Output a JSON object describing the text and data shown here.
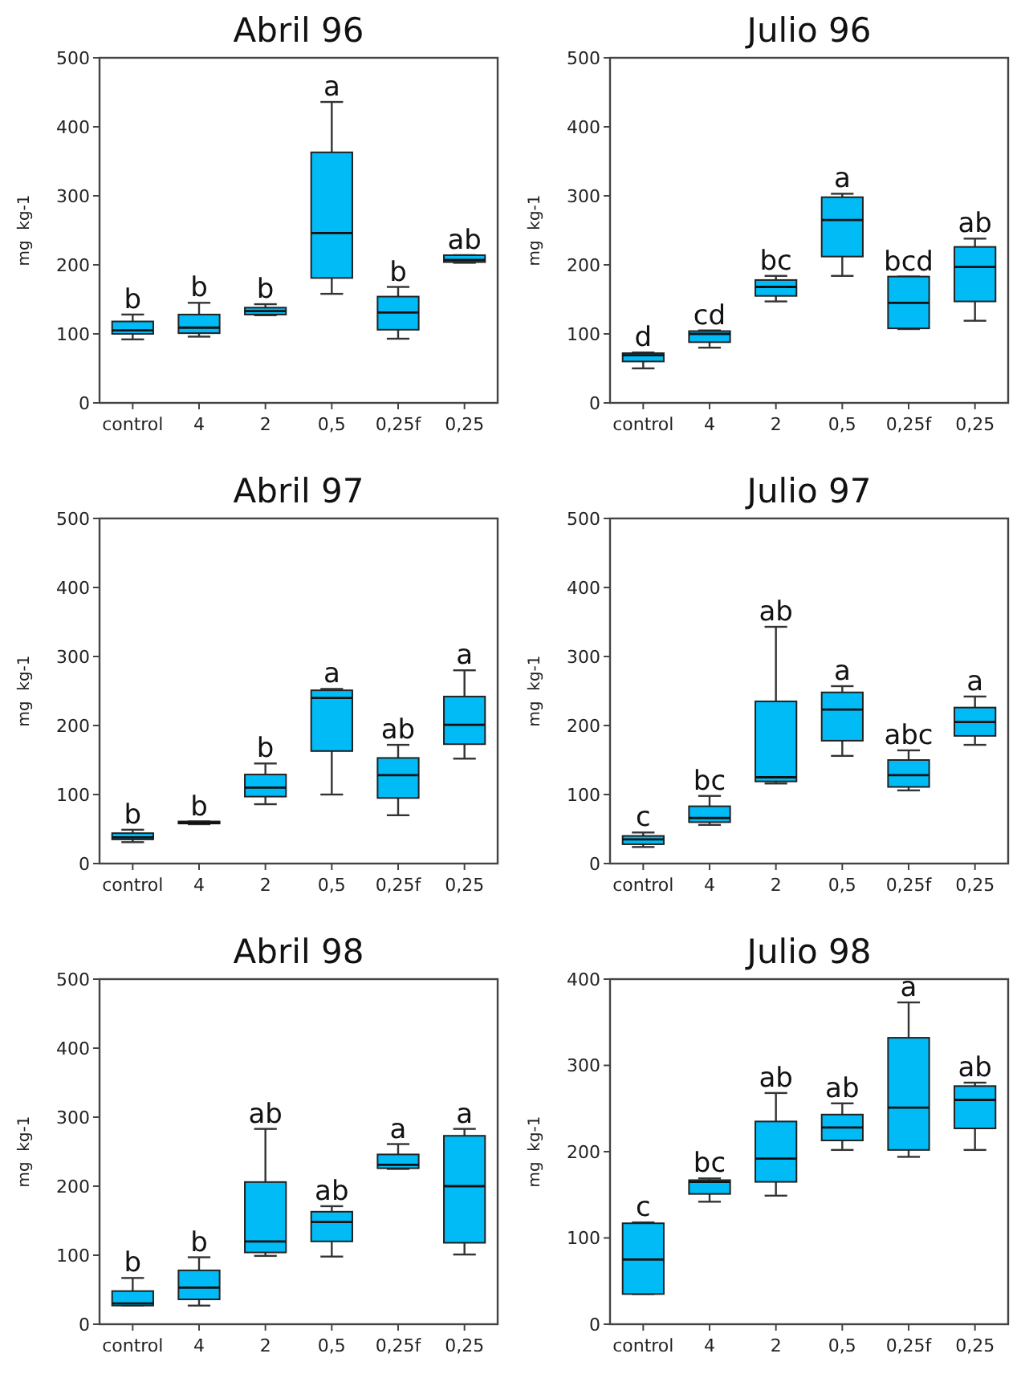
{
  "chart_data": [
    {
      "type": "box",
      "title": "Abril 96",
      "ylabel": "mg  kg-1",
      "categories": [
        "control",
        "4",
        "2",
        "0,5",
        "0,25f",
        "0,25"
      ],
      "ylim": [
        0,
        500
      ],
      "yticks": [
        0,
        100,
        200,
        300,
        400,
        500
      ],
      "grid": false,
      "series": [
        {
          "color": "#00bbf5",
          "boxes": [
            {
              "low": 92,
              "q1": 100,
              "median": 105,
              "q3": 118,
              "high": 128
            },
            {
              "low": 96,
              "q1": 101,
              "median": 109,
              "q3": 128,
              "high": 145
            },
            {
              "low": 127,
              "q1": 128,
              "median": 133,
              "q3": 138,
              "high": 143
            },
            {
              "low": 158,
              "q1": 181,
              "median": 246,
              "q3": 363,
              "high": 436
            },
            {
              "low": 93,
              "q1": 106,
              "median": 131,
              "q3": 154,
              "high": 168
            },
            {
              "low": 203,
              "q1": 204,
              "median": 207,
              "q3": 214,
              "high": 214
            }
          ]
        }
      ],
      "annotations": [
        {
          "text": "b",
          "x": "control",
          "y": 128
        },
        {
          "text": "b",
          "x": "4",
          "y": 145
        },
        {
          "text": "b",
          "x": "2",
          "y": 143
        },
        {
          "text": "a",
          "x": "0,5",
          "y": 436
        },
        {
          "text": "b",
          "x": "0,25f",
          "y": 168
        },
        {
          "text": "ab",
          "x": "0,25",
          "y": 214
        }
      ]
    },
    {
      "type": "box",
      "title": "Julio 96",
      "ylabel": "mg  kg-1",
      "categories": [
        "control",
        "4",
        "2",
        "0,5",
        "0,25f",
        "0,25"
      ],
      "ylim": [
        0,
        500
      ],
      "yticks": [
        0,
        100,
        200,
        300,
        400,
        500
      ],
      "grid": false,
      "series": [
        {
          "color": "#00bbf5",
          "boxes": [
            {
              "low": 50,
              "q1": 60,
              "median": 69,
              "q3": 72,
              "high": 73
            },
            {
              "low": 80,
              "q1": 88,
              "median": 100,
              "q3": 104,
              "high": 105
            },
            {
              "low": 147,
              "q1": 155,
              "median": 168,
              "q3": 178,
              "high": 184
            },
            {
              "low": 184,
              "q1": 212,
              "median": 265,
              "q3": 298,
              "high": 303
            },
            {
              "low": 107,
              "q1": 108,
              "median": 145,
              "q3": 183,
              "high": 183
            },
            {
              "low": 119,
              "q1": 147,
              "median": 197,
              "q3": 226,
              "high": 238
            }
          ]
        }
      ],
      "annotations": [
        {
          "text": "d",
          "x": "control",
          "y": 73
        },
        {
          "text": "cd",
          "x": "4",
          "y": 105
        },
        {
          "text": "bc",
          "x": "2",
          "y": 184
        },
        {
          "text": "a",
          "x": "0,5",
          "y": 303
        },
        {
          "text": "bcd",
          "x": "0,25f",
          "y": 183
        },
        {
          "text": "ab",
          "x": "0,25",
          "y": 238
        }
      ]
    },
    {
      "type": "box",
      "title": "Abril 97",
      "ylabel": "mg  kg-1",
      "categories": [
        "control",
        "4",
        "2",
        "0,5",
        "0,25f",
        "0,25"
      ],
      "ylim": [
        0,
        500
      ],
      "yticks": [
        0,
        100,
        200,
        300,
        400,
        500
      ],
      "grid": false,
      "series": [
        {
          "color": "#00bbf5",
          "boxes": [
            {
              "low": 31,
              "q1": 35,
              "median": 38,
              "q3": 44,
              "high": 49
            },
            {
              "low": 57,
              "q1": 58,
              "median": 59,
              "q3": 61,
              "high": 61
            },
            {
              "low": 86,
              "q1": 97,
              "median": 110,
              "q3": 129,
              "high": 145
            },
            {
              "low": 100,
              "q1": 163,
              "median": 240,
              "q3": 251,
              "high": 253
            },
            {
              "low": 70,
              "q1": 95,
              "median": 128,
              "q3": 153,
              "high": 172
            },
            {
              "low": 152,
              "q1": 173,
              "median": 201,
              "q3": 242,
              "high": 280
            }
          ]
        }
      ],
      "annotations": [
        {
          "text": "b",
          "x": "control",
          "y": 49
        },
        {
          "text": "b",
          "x": "4",
          "y": 61
        },
        {
          "text": "b",
          "x": "2",
          "y": 145
        },
        {
          "text": "a",
          "x": "0,5",
          "y": 253
        },
        {
          "text": "ab",
          "x": "0,25f",
          "y": 172
        },
        {
          "text": "a",
          "x": "0,25",
          "y": 280
        }
      ]
    },
    {
      "type": "box",
      "title": "Julio 97",
      "ylabel": "mg  kg-1",
      "categories": [
        "control",
        "4",
        "2",
        "0,5",
        "0,25f",
        "0,25"
      ],
      "ylim": [
        0,
        500
      ],
      "yticks": [
        0,
        100,
        200,
        300,
        400,
        500
      ],
      "grid": false,
      "series": [
        {
          "color": "#00bbf5",
          "boxes": [
            {
              "low": 24,
              "q1": 28,
              "median": 35,
              "q3": 40,
              "high": 45
            },
            {
              "low": 56,
              "q1": 60,
              "median": 66,
              "q3": 83,
              "high": 98
            },
            {
              "low": 116,
              "q1": 119,
              "median": 125,
              "q3": 235,
              "high": 343
            },
            {
              "low": 156,
              "q1": 178,
              "median": 223,
              "q3": 248,
              "high": 257
            },
            {
              "low": 106,
              "q1": 111,
              "median": 128,
              "q3": 150,
              "high": 164
            },
            {
              "low": 172,
              "q1": 185,
              "median": 205,
              "q3": 226,
              "high": 242
            }
          ]
        }
      ],
      "annotations": [
        {
          "text": "c",
          "x": "control",
          "y": 45
        },
        {
          "text": "bc",
          "x": "4",
          "y": 98
        },
        {
          "text": "ab",
          "x": "2",
          "y": 343
        },
        {
          "text": "a",
          "x": "0,5",
          "y": 257
        },
        {
          "text": "abc",
          "x": "0,25f",
          "y": 164
        },
        {
          "text": "a",
          "x": "0,25",
          "y": 242
        }
      ]
    },
    {
      "type": "box",
      "title": "Abril 98",
      "ylabel": "mg  kg-1",
      "categories": [
        "control",
        "4",
        "2",
        "0,5",
        "0,25f",
        "0,25"
      ],
      "ylim": [
        0,
        500
      ],
      "yticks": [
        0,
        100,
        200,
        300,
        400,
        500
      ],
      "grid": false,
      "series": [
        {
          "color": "#00bbf5",
          "boxes": [
            {
              "low": 27,
              "q1": 27,
              "median": 30,
              "q3": 48,
              "high": 67
            },
            {
              "low": 27,
              "q1": 36,
              "median": 53,
              "q3": 78,
              "high": 97
            },
            {
              "low": 99,
              "q1": 104,
              "median": 120,
              "q3": 206,
              "high": 283
            },
            {
              "low": 98,
              "q1": 120,
              "median": 148,
              "q3": 163,
              "high": 171
            },
            {
              "low": 225,
              "q1": 226,
              "median": 231,
              "q3": 246,
              "high": 261
            },
            {
              "low": 101,
              "q1": 118,
              "median": 200,
              "q3": 273,
              "high": 283
            }
          ]
        }
      ],
      "annotations": [
        {
          "text": "b",
          "x": "control",
          "y": 67
        },
        {
          "text": "b",
          "x": "4",
          "y": 97
        },
        {
          "text": "ab",
          "x": "2",
          "y": 283
        },
        {
          "text": "ab",
          "x": "0,5",
          "y": 171
        },
        {
          "text": "a",
          "x": "0,25f",
          "y": 261
        },
        {
          "text": "a",
          "x": "0,25",
          "y": 283
        }
      ]
    },
    {
      "type": "box",
      "title": "Julio 98",
      "ylabel": "mg  kg-1",
      "categories": [
        "control",
        "4",
        "2",
        "0,5",
        "0,25f",
        "0,25"
      ],
      "ylim": [
        0,
        400
      ],
      "yticks": [
        0,
        100,
        200,
        300,
        400
      ],
      "grid": false,
      "series": [
        {
          "color": "#00bbf5",
          "boxes": [
            {
              "low": 35,
              "q1": 35,
              "median": 75,
              "q3": 117,
              "high": 118
            },
            {
              "low": 142,
              "q1": 151,
              "median": 165,
              "q3": 167,
              "high": 169
            },
            {
              "low": 149,
              "q1": 165,
              "median": 192,
              "q3": 235,
              "high": 268
            },
            {
              "low": 202,
              "q1": 213,
              "median": 228,
              "q3": 243,
              "high": 256
            },
            {
              "low": 194,
              "q1": 202,
              "median": 251,
              "q3": 332,
              "high": 373
            },
            {
              "low": 202,
              "q1": 227,
              "median": 260,
              "q3": 276,
              "high": 280
            }
          ]
        }
      ],
      "annotations": [
        {
          "text": "c",
          "x": "control",
          "y": 118
        },
        {
          "text": "bc",
          "x": "4",
          "y": 169
        },
        {
          "text": "ab",
          "x": "2",
          "y": 268
        },
        {
          "text": "ab",
          "x": "0,5",
          "y": 256
        },
        {
          "text": "a",
          "x": "0,25f",
          "y": 373
        },
        {
          "text": "ab",
          "x": "0,25",
          "y": 280
        }
      ]
    }
  ]
}
